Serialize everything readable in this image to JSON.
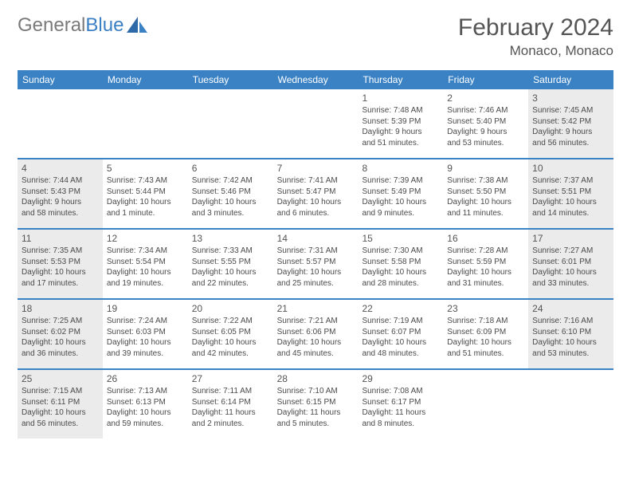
{
  "logo": {
    "left": "General",
    "right": "Blue"
  },
  "title": "February 2024",
  "location": "Monaco, Monaco",
  "header_color": "#3b82c4",
  "shade_color": "#ebebeb",
  "daynames": [
    "Sunday",
    "Monday",
    "Tuesday",
    "Wednesday",
    "Thursday",
    "Friday",
    "Saturday"
  ],
  "weeks": [
    [
      null,
      null,
      null,
      null,
      {
        "date": "1",
        "sunrise": "Sunrise: 7:48 AM",
        "sunset": "Sunset: 5:39 PM",
        "d1": "Daylight: 9 hours",
        "d2": "and 51 minutes."
      },
      {
        "date": "2",
        "sunrise": "Sunrise: 7:46 AM",
        "sunset": "Sunset: 5:40 PM",
        "d1": "Daylight: 9 hours",
        "d2": "and 53 minutes."
      },
      {
        "date": "3",
        "shade": true,
        "sunrise": "Sunrise: 7:45 AM",
        "sunset": "Sunset: 5:42 PM",
        "d1": "Daylight: 9 hours",
        "d2": "and 56 minutes."
      }
    ],
    [
      {
        "date": "4",
        "shade": true,
        "sunrise": "Sunrise: 7:44 AM",
        "sunset": "Sunset: 5:43 PM",
        "d1": "Daylight: 9 hours",
        "d2": "and 58 minutes."
      },
      {
        "date": "5",
        "sunrise": "Sunrise: 7:43 AM",
        "sunset": "Sunset: 5:44 PM",
        "d1": "Daylight: 10 hours",
        "d2": "and 1 minute."
      },
      {
        "date": "6",
        "sunrise": "Sunrise: 7:42 AM",
        "sunset": "Sunset: 5:46 PM",
        "d1": "Daylight: 10 hours",
        "d2": "and 3 minutes."
      },
      {
        "date": "7",
        "sunrise": "Sunrise: 7:41 AM",
        "sunset": "Sunset: 5:47 PM",
        "d1": "Daylight: 10 hours",
        "d2": "and 6 minutes."
      },
      {
        "date": "8",
        "sunrise": "Sunrise: 7:39 AM",
        "sunset": "Sunset: 5:49 PM",
        "d1": "Daylight: 10 hours",
        "d2": "and 9 minutes."
      },
      {
        "date": "9",
        "sunrise": "Sunrise: 7:38 AM",
        "sunset": "Sunset: 5:50 PM",
        "d1": "Daylight: 10 hours",
        "d2": "and 11 minutes."
      },
      {
        "date": "10",
        "shade": true,
        "sunrise": "Sunrise: 7:37 AM",
        "sunset": "Sunset: 5:51 PM",
        "d1": "Daylight: 10 hours",
        "d2": "and 14 minutes."
      }
    ],
    [
      {
        "date": "11",
        "shade": true,
        "sunrise": "Sunrise: 7:35 AM",
        "sunset": "Sunset: 5:53 PM",
        "d1": "Daylight: 10 hours",
        "d2": "and 17 minutes."
      },
      {
        "date": "12",
        "sunrise": "Sunrise: 7:34 AM",
        "sunset": "Sunset: 5:54 PM",
        "d1": "Daylight: 10 hours",
        "d2": "and 19 minutes."
      },
      {
        "date": "13",
        "sunrise": "Sunrise: 7:33 AM",
        "sunset": "Sunset: 5:55 PM",
        "d1": "Daylight: 10 hours",
        "d2": "and 22 minutes."
      },
      {
        "date": "14",
        "sunrise": "Sunrise: 7:31 AM",
        "sunset": "Sunset: 5:57 PM",
        "d1": "Daylight: 10 hours",
        "d2": "and 25 minutes."
      },
      {
        "date": "15",
        "sunrise": "Sunrise: 7:30 AM",
        "sunset": "Sunset: 5:58 PM",
        "d1": "Daylight: 10 hours",
        "d2": "and 28 minutes."
      },
      {
        "date": "16",
        "sunrise": "Sunrise: 7:28 AM",
        "sunset": "Sunset: 5:59 PM",
        "d1": "Daylight: 10 hours",
        "d2": "and 31 minutes."
      },
      {
        "date": "17",
        "shade": true,
        "sunrise": "Sunrise: 7:27 AM",
        "sunset": "Sunset: 6:01 PM",
        "d1": "Daylight: 10 hours",
        "d2": "and 33 minutes."
      }
    ],
    [
      {
        "date": "18",
        "shade": true,
        "sunrise": "Sunrise: 7:25 AM",
        "sunset": "Sunset: 6:02 PM",
        "d1": "Daylight: 10 hours",
        "d2": "and 36 minutes."
      },
      {
        "date": "19",
        "sunrise": "Sunrise: 7:24 AM",
        "sunset": "Sunset: 6:03 PM",
        "d1": "Daylight: 10 hours",
        "d2": "and 39 minutes."
      },
      {
        "date": "20",
        "sunrise": "Sunrise: 7:22 AM",
        "sunset": "Sunset: 6:05 PM",
        "d1": "Daylight: 10 hours",
        "d2": "and 42 minutes."
      },
      {
        "date": "21",
        "sunrise": "Sunrise: 7:21 AM",
        "sunset": "Sunset: 6:06 PM",
        "d1": "Daylight: 10 hours",
        "d2": "and 45 minutes."
      },
      {
        "date": "22",
        "sunrise": "Sunrise: 7:19 AM",
        "sunset": "Sunset: 6:07 PM",
        "d1": "Daylight: 10 hours",
        "d2": "and 48 minutes."
      },
      {
        "date": "23",
        "sunrise": "Sunrise: 7:18 AM",
        "sunset": "Sunset: 6:09 PM",
        "d1": "Daylight: 10 hours",
        "d2": "and 51 minutes."
      },
      {
        "date": "24",
        "shade": true,
        "sunrise": "Sunrise: 7:16 AM",
        "sunset": "Sunset: 6:10 PM",
        "d1": "Daylight: 10 hours",
        "d2": "and 53 minutes."
      }
    ],
    [
      {
        "date": "25",
        "shade": true,
        "sunrise": "Sunrise: 7:15 AM",
        "sunset": "Sunset: 6:11 PM",
        "d1": "Daylight: 10 hours",
        "d2": "and 56 minutes."
      },
      {
        "date": "26",
        "sunrise": "Sunrise: 7:13 AM",
        "sunset": "Sunset: 6:13 PM",
        "d1": "Daylight: 10 hours",
        "d2": "and 59 minutes."
      },
      {
        "date": "27",
        "sunrise": "Sunrise: 7:11 AM",
        "sunset": "Sunset: 6:14 PM",
        "d1": "Daylight: 11 hours",
        "d2": "and 2 minutes."
      },
      {
        "date": "28",
        "sunrise": "Sunrise: 7:10 AM",
        "sunset": "Sunset: 6:15 PM",
        "d1": "Daylight: 11 hours",
        "d2": "and 5 minutes."
      },
      {
        "date": "29",
        "sunrise": "Sunrise: 7:08 AM",
        "sunset": "Sunset: 6:17 PM",
        "d1": "Daylight: 11 hours",
        "d2": "and 8 minutes."
      },
      null,
      null
    ]
  ]
}
